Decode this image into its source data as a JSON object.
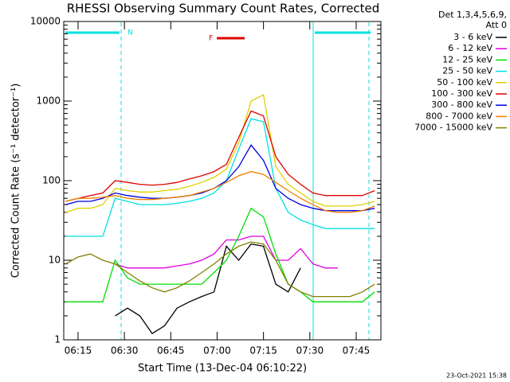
{
  "chart_data": {
    "type": "line",
    "title": "RHESSI Observing Summary Count Rates, Corrected",
    "xlabel": "Start Time (13-Dec-04 06:10:22)",
    "ylabel": "Corrected Count Rate (s⁻¹ detector⁻¹)",
    "legend_title": [
      "Det 1,3,4,5,6,9,",
      "Att 0"
    ],
    "footer": "23-Oct-2021 15:38",
    "annotations": [
      "N",
      "F"
    ],
    "log_y": true,
    "xlim": [
      10.37,
      113
    ],
    "xticks": [
      {
        "value": 15,
        "label": "06:15"
      },
      {
        "value": 30,
        "label": "06:30"
      },
      {
        "value": 45,
        "label": "06:45"
      },
      {
        "value": 60,
        "label": "07:00"
      },
      {
        "value": 75,
        "label": "07:15"
      },
      {
        "value": 90,
        "label": "07:30"
      },
      {
        "value": 105,
        "label": "07:45"
      }
    ],
    "ylim": [
      1,
      10000
    ],
    "yticks": [
      1,
      10,
      100,
      1000,
      10000
    ],
    "x": [
      11,
      15,
      19,
      23,
      27,
      31,
      35,
      39,
      43,
      47,
      51,
      55,
      59,
      63,
      67,
      71,
      75,
      79,
      83,
      87,
      91,
      95,
      99,
      103,
      107,
      111
    ],
    "series": [
      {
        "name": "3 - 6 keV",
        "color": "#000000",
        "values": [
          null,
          null,
          null,
          null,
          2,
          2.5,
          2,
          1.2,
          1.5,
          2.5,
          3,
          3.5,
          4,
          15,
          10,
          16,
          15,
          5,
          4,
          8,
          null,
          null,
          null,
          null,
          null,
          null
        ]
      },
      {
        "name": "6 - 12 keV",
        "color": "#e000e0",
        "values": [
          null,
          null,
          null,
          null,
          9,
          8,
          8,
          8,
          8,
          8.5,
          9,
          10,
          12,
          18,
          18,
          20,
          20,
          10,
          10,
          14,
          9,
          8,
          8,
          null,
          null,
          null
        ]
      },
      {
        "name": "12 - 25 keV",
        "color": "#00e000",
        "values": [
          3,
          3,
          3,
          3,
          10,
          6,
          5,
          5,
          5,
          5,
          5,
          5,
          7,
          10,
          20,
          45,
          35,
          12,
          5,
          4,
          3,
          3,
          3,
          3,
          3,
          4
        ]
      },
      {
        "name": "25 - 50 keV",
        "color": "#00e0e0",
        "values": [
          20,
          20,
          20,
          20,
          60,
          55,
          50,
          50,
          50,
          52,
          55,
          60,
          70,
          100,
          250,
          600,
          550,
          80,
          40,
          32,
          28,
          25,
          25,
          25,
          25,
          25
        ]
      },
      {
        "name": "50 - 100 keV",
        "color": "#e0d000",
        "values": [
          40,
          45,
          45,
          50,
          80,
          75,
          72,
          72,
          75,
          78,
          85,
          95,
          110,
          140,
          300,
          1000,
          1200,
          150,
          90,
          70,
          55,
          48,
          48,
          48,
          50,
          55
        ]
      },
      {
        "name": "100 - 300 keV",
        "color": "#e00000",
        "values": [
          55,
          60,
          65,
          70,
          100,
          95,
          90,
          88,
          90,
          95,
          105,
          115,
          130,
          160,
          350,
          750,
          650,
          200,
          120,
          90,
          70,
          65,
          65,
          65,
          65,
          75
        ]
      },
      {
        "name": "300 - 800 keV",
        "color": "#0000e0",
        "values": [
          50,
          55,
          55,
          60,
          70,
          65,
          62,
          60,
          60,
          62,
          65,
          70,
          80,
          100,
          150,
          280,
          180,
          80,
          60,
          50,
          45,
          42,
          42,
          42,
          42,
          45
        ]
      },
      {
        "name": "800 - 7000 keV",
        "color": "#f08000",
        "values": [
          55,
          60,
          60,
          62,
          65,
          60,
          58,
          58,
          60,
          62,
          65,
          72,
          80,
          95,
          115,
          130,
          120,
          95,
          75,
          60,
          50,
          42,
          40,
          40,
          42,
          48
        ]
      },
      {
        "name": "7000 - 15000 keV",
        "color": "#808000",
        "values": [
          9,
          11,
          12,
          10,
          9,
          7,
          5.5,
          4.5,
          4,
          4.5,
          5.5,
          7,
          9,
          12,
          15,
          17,
          16,
          10,
          5,
          4,
          3.5,
          3.5,
          3.5,
          3.5,
          4,
          5
        ]
      }
    ]
  }
}
